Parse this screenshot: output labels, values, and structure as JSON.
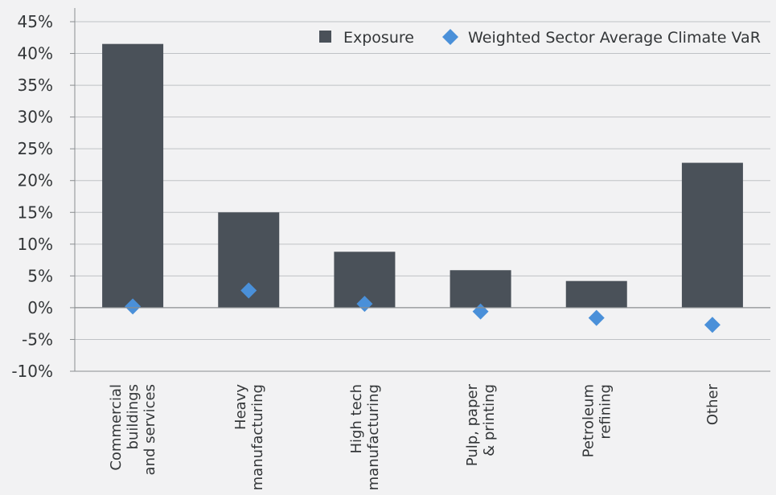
{
  "chart_data": {
    "type": "bar",
    "categories": [
      [
        "Commercial",
        "buildings",
        "and services"
      ],
      [
        "Heavy",
        "manufacturing"
      ],
      [
        "High tech",
        "manufacturing"
      ],
      [
        "Pulp, paper",
        "& printing"
      ],
      [
        "Petroleum",
        "refining"
      ],
      [
        "Other"
      ]
    ],
    "series": [
      {
        "name": "Exposure",
        "type": "bar",
        "values": [
          41.5,
          15.0,
          8.8,
          5.9,
          4.2,
          22.8
        ]
      },
      {
        "name": "Weighted Sector Average Climate VaR",
        "type": "scatter",
        "values": [
          0.2,
          2.7,
          0.6,
          -0.6,
          -1.6,
          -2.7
        ]
      }
    ],
    "y_ticks": [
      "45%",
      "40%",
      "35%",
      "30%",
      "25%",
      "20%",
      "15%",
      "10%",
      "5%",
      "0%",
      "-5%",
      "-10%"
    ],
    "ylim": [
      -10,
      45
    ],
    "grid": true,
    "legend_position": "top-right",
    "colors": {
      "bar": "#4a5159",
      "marker": "#4a90d9",
      "grid": "#bfc2c5",
      "axis": "#8a8d90"
    }
  }
}
